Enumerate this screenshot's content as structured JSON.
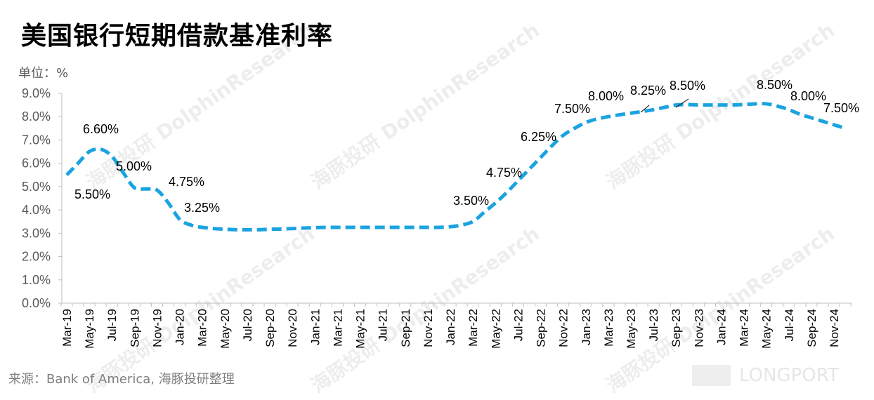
{
  "chart_data": {
    "type": "line",
    "title": "美国银行短期借款基准利率",
    "ylabel": "单位：%",
    "xlabel": "",
    "ylim": [
      0,
      9
    ],
    "yticks": [
      "0.0%",
      "1.0%",
      "2.0%",
      "3.0%",
      "4.0%",
      "5.0%",
      "6.0%",
      "7.0%",
      "8.0%",
      "9.0%"
    ],
    "xtick_labels": [
      "Mar-19",
      "May-19",
      "Jul-19",
      "Sep-19",
      "Nov-19",
      "Jan-20",
      "Mar-20",
      "May-20",
      "Jul-20",
      "Sep-20",
      "Nov-20",
      "Jan-21",
      "Mar-21",
      "May-21",
      "Jul-21",
      "Sep-21",
      "Nov-21",
      "Jan-22",
      "Mar-22",
      "May-22",
      "Jul-22",
      "Sep-22",
      "Nov-22",
      "Jan-23",
      "Mar-23",
      "May-23",
      "Jul-23",
      "Sep-23",
      "Nov-23",
      "Jan-24",
      "Mar-24",
      "May-24",
      "Jul-24",
      "Sep-24",
      "Nov-24"
    ],
    "series": [
      {
        "name": "美国银行短期借款基准利率",
        "color": "#1aa3e0",
        "start": "Mar-19",
        "frequency": "monthly",
        "values": [
          5.5,
          6.0,
          6.5,
          6.6,
          6.3,
          5.6,
          4.95,
          4.9,
          4.85,
          4.3,
          3.6,
          3.35,
          3.25,
          3.2,
          3.17,
          3.15,
          3.15,
          3.15,
          3.17,
          3.18,
          3.2,
          3.22,
          3.24,
          3.25,
          3.25,
          3.25,
          3.25,
          3.25,
          3.25,
          3.25,
          3.25,
          3.25,
          3.25,
          3.25,
          3.28,
          3.35,
          3.5,
          3.9,
          4.3,
          4.75,
          5.25,
          5.75,
          6.25,
          6.75,
          7.2,
          7.5,
          7.75,
          7.9,
          8.0,
          8.08,
          8.15,
          8.22,
          8.3,
          8.4,
          8.5,
          8.52,
          8.5,
          8.5,
          8.5,
          8.5,
          8.52,
          8.55,
          8.55,
          8.45,
          8.3,
          8.1,
          7.95,
          7.8,
          7.65,
          7.5
        ]
      }
    ],
    "annotations": [
      "6.60%",
      "5.50%",
      "5.00%",
      "4.75%",
      "3.25%",
      "3.50%",
      "4.75%",
      "6.25%",
      "7.50%",
      "8.00%",
      "8.25%",
      "8.50%",
      "8.50%",
      "8.00%",
      "7.50%"
    ],
    "grid": false,
    "legend": "none"
  },
  "source": "来源：Bank of America, 海豚投研整理",
  "watermark": "海豚投研 DolphinResearch",
  "logo": "LONGPORT"
}
